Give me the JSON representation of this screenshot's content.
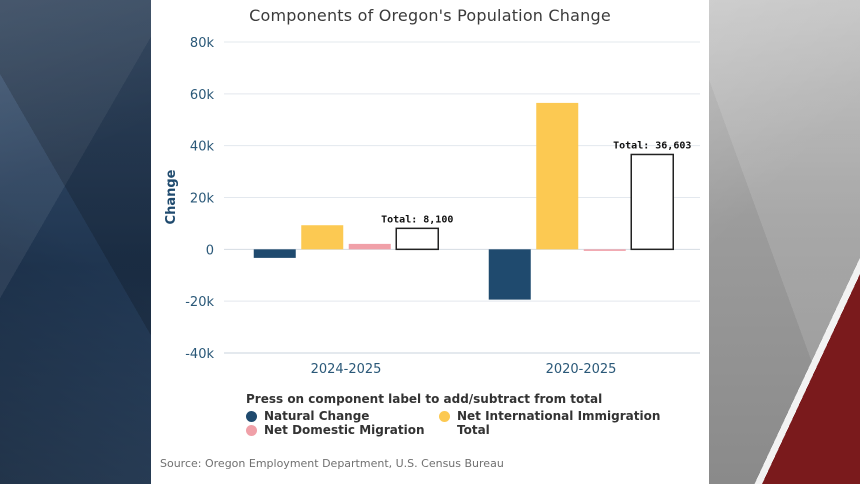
{
  "chart_data": {
    "type": "bar",
    "title": "Components of Oregon's Population Change",
    "ylabel": "Change",
    "xlabel": "",
    "ylim": [
      -40000,
      80000
    ],
    "yticks": [
      80000,
      60000,
      40000,
      20000,
      0,
      -20000,
      -40000
    ],
    "ytick_labels": [
      "80k",
      "60k",
      "40k",
      "20k",
      "0",
      "-20k",
      "-40k"
    ],
    "categories": [
      "2024-2025",
      "2020-2025"
    ],
    "series": [
      {
        "name": "Natural Change",
        "color": "#1f4a6e",
        "values": [
          -3300,
          -19400
        ]
      },
      {
        "name": "Net International Immigration",
        "color": "#fcc952",
        "values": [
          9300,
          56500
        ]
      },
      {
        "name": "Net Domestic Migration",
        "color": "#f0a0a8",
        "values": [
          2100,
          -600
        ]
      },
      {
        "name": "Total",
        "color": "#ffffff",
        "values": [
          8100,
          36603
        ]
      }
    ],
    "total_labels": [
      "Total: 8,100",
      "Total: 36,603"
    ],
    "legend_title": "Press on component label to add/subtract from total",
    "grid": true
  },
  "source": "Source: Oregon Employment Department, U.S. Census Bureau"
}
